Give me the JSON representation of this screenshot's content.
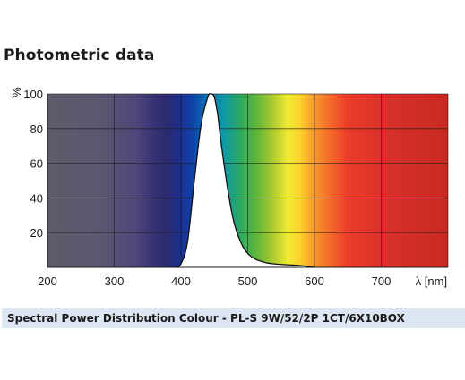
{
  "page": {
    "title": "Photometric data",
    "caption": "Spectral Power Distribution Colour - PL-S 9W/52/2P 1CT/6X10BOX"
  },
  "chart_data": {
    "type": "area",
    "ylabel": "%",
    "xlabel": "λ [nm]",
    "xlim": [
      200,
      800
    ],
    "ylim": [
      0,
      100
    ],
    "x_ticks": [
      200,
      300,
      400,
      500,
      600,
      700
    ],
    "y_ticks": [
      20,
      40,
      60,
      80,
      100
    ],
    "grid": true,
    "background": "visible spectrum gradient",
    "series": [
      {
        "x": [
          390,
          400,
          410,
          420,
          430,
          440,
          445,
          450,
          455,
          460,
          470,
          480,
          490,
          500,
          510,
          520,
          530,
          540,
          560,
          580,
          600
        ],
        "y": [
          0,
          2,
          15,
          50,
          82,
          98,
          100,
          98,
          88,
          72,
          45,
          25,
          14,
          8,
          5,
          3.5,
          2.5,
          2,
          1.5,
          1,
          0
        ]
      }
    ]
  }
}
